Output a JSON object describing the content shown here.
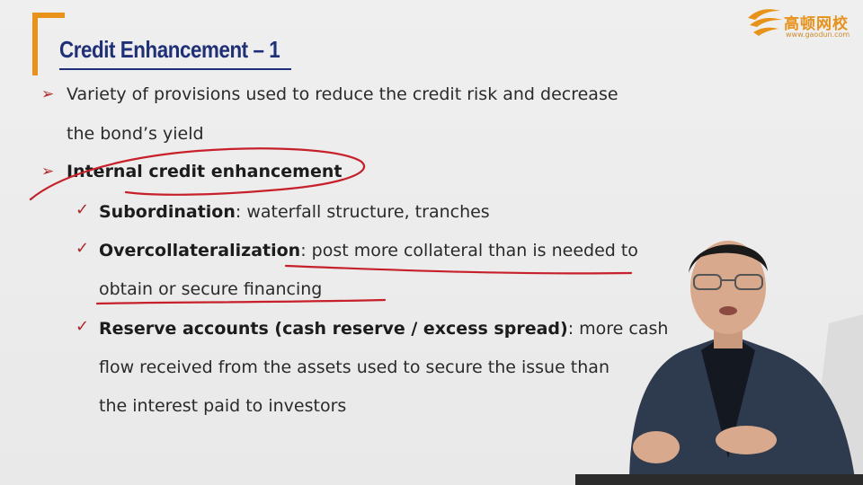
{
  "slide": {
    "title": "Credit Enhancement – 1",
    "logo": {
      "chinese": "高顿网校",
      "url": "www.gaodun.com"
    },
    "bullets": [
      {
        "line1": "Variety of provisions used to reduce the credit risk and decrease",
        "line2": "the bond’s yield"
      },
      {
        "text": "Internal credit enhancement"
      }
    ],
    "sub_items": [
      {
        "term": "Subordination",
        "desc": ": waterfall structure, tranches"
      },
      {
        "term": "Overcollateralization",
        "desc": ": post more collateral than is needed to",
        "cont": "obtain or secure financing"
      },
      {
        "term": "Reserve accounts (cash reserve / excess spread)",
        "desc": ": more cash",
        "cont1": "flow received from the assets used to secure the issue than",
        "cont2": "the interest paid to investors"
      }
    ]
  },
  "colors": {
    "accent_orange": "#e8921a",
    "title_blue": "#1f2f7a",
    "marker_red": "#b3262a"
  },
  "icons": {
    "bullet": "arrow-bullet-icon",
    "check": "check-icon",
    "logo": "gaodun-logo-icon"
  }
}
